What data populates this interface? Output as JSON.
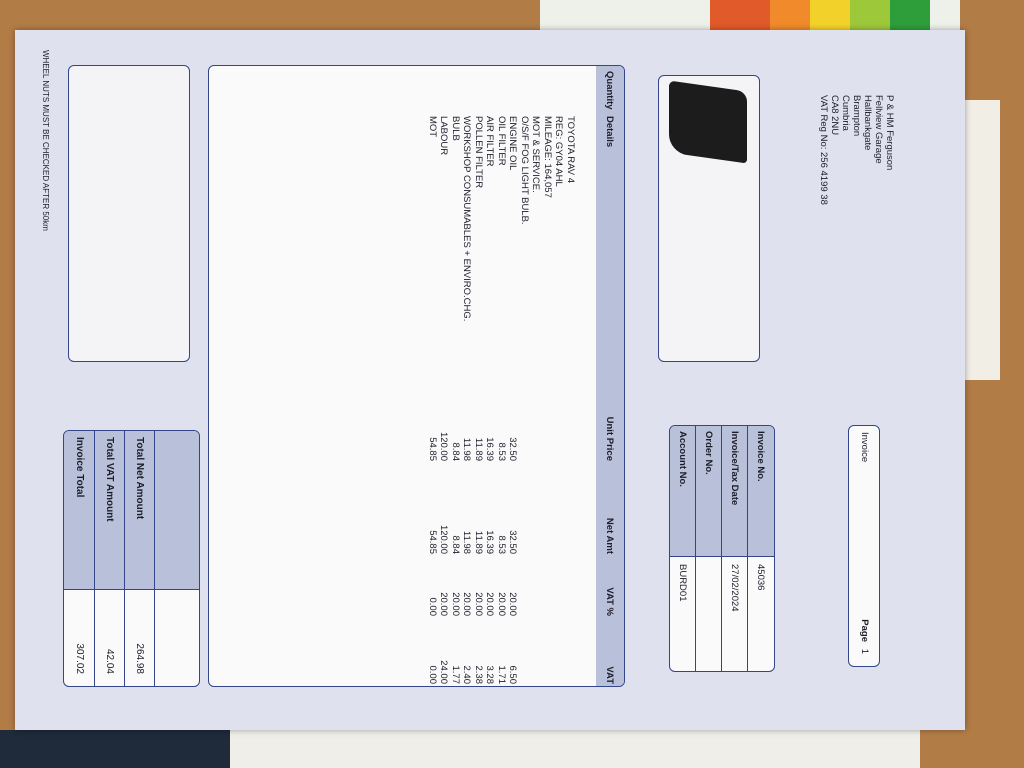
{
  "header": {
    "address": [
      "P & HM Ferguson",
      "Fellview Garage",
      "Hallbankgate",
      "Brampton",
      "Cumbria",
      "CA8 2NU",
      "VAT Reg No:  256 4199 38"
    ]
  },
  "invoice_box": {
    "title": "Invoice",
    "page_label": "Page",
    "page_number": "1"
  },
  "info": [
    {
      "label": "Invoice No.",
      "value": "45036"
    },
    {
      "label": "Invoice/Tax Date",
      "value": "27/02/2024"
    },
    {
      "label": "Order No."
    },
    {
      "label": "Account No.",
      "value": "BURD01"
    }
  ],
  "table": {
    "columns": [
      "Quantity",
      "Details",
      "Unit Price",
      "Net Amt",
      "VAT %",
      "VAT"
    ],
    "rows": [
      {
        "details": "TOYOTA RAV 4"
      },
      {
        "details": "REG: GY04 AHL"
      },
      {
        "details": "MILEAGE: 164,057"
      },
      {
        "details": "MOT & SERVICE."
      },
      {
        "details": "O/S/F FOG LIGHT BULB."
      },
      {
        "details": "ENGINE OIL",
        "unit_price": "32.50",
        "net_amt": "32.50",
        "vat_pct": "20.00",
        "vat": "6.50"
      },
      {
        "details": "OIL FILTER",
        "unit_price": "8.53",
        "net_amt": "8.53",
        "vat_pct": "20.00",
        "vat": "1.71"
      },
      {
        "details": "AIR FILTER",
        "unit_price": "16.39",
        "net_amt": "16.39",
        "vat_pct": "20.00",
        "vat": "3.28"
      },
      {
        "details": "POLLEN FILTER",
        "unit_price": "11.89",
        "net_amt": "11.89",
        "vat_pct": "20.00",
        "vat": "2.38"
      },
      {
        "details": "WORKSHOP CONSUMABLES + ENVIRO.CHG.",
        "unit_price": "11.98",
        "net_amt": "11.98",
        "vat_pct": "20.00",
        "vat": "2.40"
      },
      {
        "details": "BULB",
        "unit_price": "8.84",
        "net_amt": "8.84",
        "vat_pct": "20.00",
        "vat": "1.77"
      },
      {
        "details": "LABOUR",
        "unit_price": "120.00",
        "net_amt": "120.00",
        "vat_pct": "20.00",
        "vat": "24.00"
      },
      {
        "details": "MOT",
        "unit_price": "54.85",
        "net_amt": "54.85",
        "vat_pct": "0.00",
        "vat": "0.00"
      }
    ]
  },
  "totals": [
    {
      "label": "Total Net Amount",
      "value": "264.98"
    },
    {
      "label": "Total VAT Amount",
      "value": "42.04"
    },
    {
      "label": "Invoice Total",
      "value": "307.02"
    }
  ],
  "footer": {
    "note": "WHEEL NUTS MUST BE CHECKED AFTER 50km"
  }
}
